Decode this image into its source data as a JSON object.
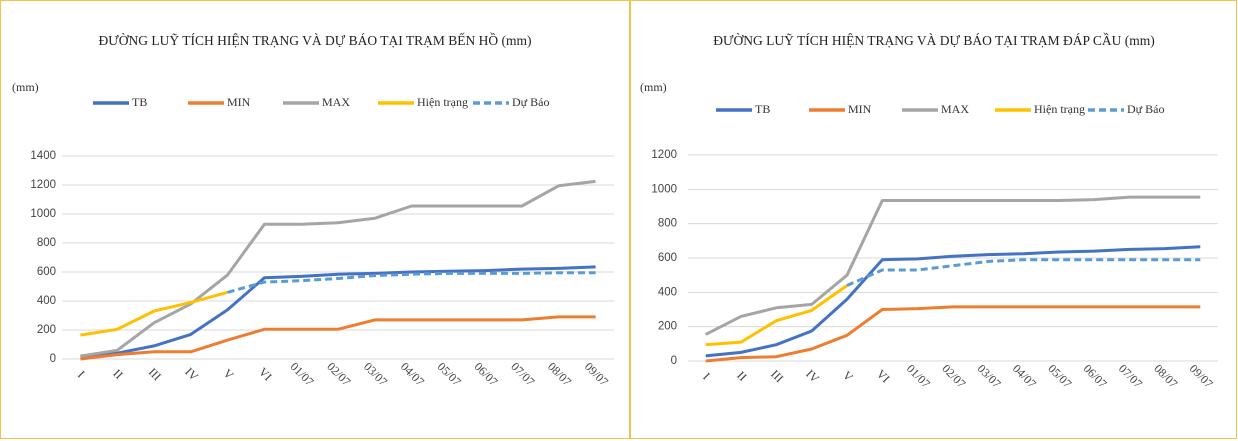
{
  "chart_data": [
    {
      "type": "line",
      "title": "ĐƯỜNG LUỸ TÍCH HIỆN TRẠNG VÀ DỰ BÁO TẠI TRẠM BẾN HỒ (mm)",
      "y_label": "(mm)",
      "categories": [
        "I",
        "II",
        "III",
        "IV",
        "V",
        "VI",
        "01/07",
        "02/07",
        "03/07",
        "04/07",
        "05/07",
        "06/07",
        "07/07",
        "08/07",
        "09/07"
      ],
      "ylim": [
        0,
        1400
      ],
      "yticks": [
        0,
        200,
        400,
        600,
        800,
        1000,
        1200,
        1400
      ],
      "grid": true,
      "series": [
        {
          "name": "TB",
          "color": "#4472c4",
          "values": [
            20,
            40,
            90,
            170,
            340,
            560,
            570,
            585,
            590,
            600,
            605,
            610,
            620,
            625,
            635
          ]
        },
        {
          "name": "MIN",
          "color": "#ed7d31",
          "values": [
            0,
            30,
            50,
            50,
            130,
            205,
            205,
            205,
            270,
            270,
            270,
            270,
            270,
            290,
            290
          ]
        },
        {
          "name": "MAX",
          "color": "#a5a5a5",
          "values": [
            20,
            60,
            250,
            380,
            580,
            930,
            930,
            940,
            970,
            1055,
            1055,
            1055,
            1055,
            1195,
            1225
          ]
        },
        {
          "name": "Hiện trạng",
          "color": "#ffc000",
          "values": [
            165,
            205,
            330,
            390,
            460,
            null,
            null,
            null,
            null,
            null,
            null,
            null,
            null,
            null,
            null
          ]
        },
        {
          "name": "Dự Báo",
          "color": "#5b9bd5",
          "dashed": true,
          "values": [
            null,
            null,
            null,
            null,
            460,
            530,
            540,
            555,
            575,
            585,
            590,
            590,
            590,
            595,
            595
          ]
        }
      ]
    },
    {
      "type": "line",
      "title": "ĐƯỜNG LUỸ TÍCH HIỆN TRẠNG VÀ DỰ BÁO TẠI TRẠM ĐÁP CẦU (mm)",
      "y_label": "(mm)",
      "categories": [
        "I",
        "II",
        "III",
        "IV",
        "V",
        "VI",
        "01/07",
        "02/07",
        "03/07",
        "04/07",
        "05/07",
        "06/07",
        "07/07",
        "08/07",
        "09/07"
      ],
      "ylim": [
        0,
        1200
      ],
      "yticks": [
        0,
        200,
        400,
        600,
        800,
        1000,
        1200
      ],
      "grid": true,
      "series": [
        {
          "name": "TB",
          "color": "#4472c4",
          "values": [
            30,
            50,
            95,
            175,
            360,
            590,
            595,
            610,
            620,
            625,
            635,
            640,
            650,
            655,
            665
          ]
        },
        {
          "name": "MIN",
          "color": "#ed7d31",
          "values": [
            0,
            20,
            25,
            70,
            150,
            300,
            305,
            315,
            315,
            315,
            315,
            315,
            315,
            315,
            315
          ]
        },
        {
          "name": "MAX",
          "color": "#a5a5a5",
          "values": [
            155,
            260,
            310,
            330,
            500,
            935,
            935,
            935,
            935,
            935,
            935,
            940,
            955,
            955,
            955
          ]
        },
        {
          "name": "Hiện trạng",
          "color": "#ffc000",
          "values": [
            95,
            110,
            235,
            295,
            440,
            null,
            null,
            null,
            null,
            null,
            null,
            null,
            null,
            null,
            null
          ]
        },
        {
          "name": "Dự Báo",
          "color": "#5b9bd5",
          "dashed": true,
          "values": [
            null,
            null,
            null,
            null,
            440,
            530,
            530,
            555,
            580,
            590,
            590,
            590,
            590,
            590,
            590
          ]
        }
      ]
    }
  ]
}
